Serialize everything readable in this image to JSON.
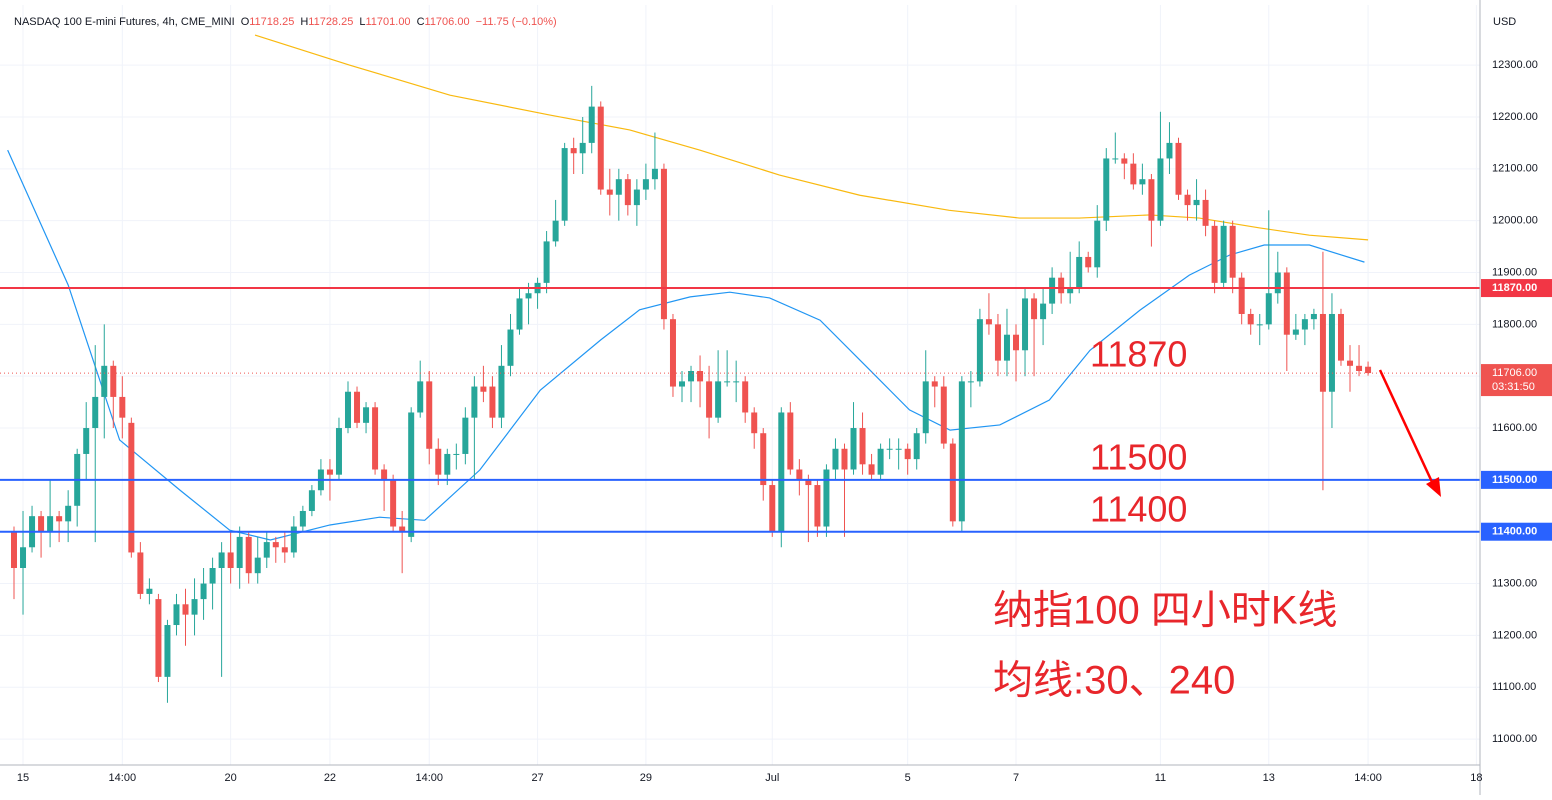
{
  "chart_data": {
    "type": "candlestick",
    "header": {
      "title": "NASDAQ 100 E-mini Futures, 4h, CME_MINI",
      "fields": [
        {
          "key": "O",
          "value": "11718.25"
        },
        {
          "key": "H",
          "value": "11728.25"
        },
        {
          "key": "L",
          "value": "11701.00"
        },
        {
          "key": "C",
          "value": "11706.00"
        }
      ],
      "change": "−11.75 (−0.10%)"
    },
    "currency": "USD",
    "up_color": "#26a69a",
    "down_color": "#ef5350",
    "ylim": [
      10950,
      12416
    ],
    "yticks": [
      {
        "value": 11000,
        "label": "11000.00"
      },
      {
        "value": 11100,
        "label": "11100.00"
      },
      {
        "value": 11200,
        "label": "11200.00"
      },
      {
        "value": 11300,
        "label": "11300.00"
      },
      {
        "value": 11400,
        "label": "11400.00"
      },
      {
        "value": 11500,
        "label": "11500.00"
      },
      {
        "value": 11600,
        "label": "11600.00"
      },
      {
        "value": 11700,
        "label": "11700.00"
      },
      {
        "value": 11800,
        "label": "11800.00"
      },
      {
        "value": 11900,
        "label": "11900.00"
      },
      {
        "value": 12000,
        "label": "12000.00"
      },
      {
        "value": 12100,
        "label": "12100.00"
      },
      {
        "value": 12200,
        "label": "12200.00"
      },
      {
        "value": 12300,
        "label": "12300.00"
      }
    ],
    "xlim": [
      -1.55,
      162.4
    ],
    "xticks": [
      {
        "value": 1,
        "label": "15"
      },
      {
        "value": 12,
        "label": "14:00"
      },
      {
        "value": 24,
        "label": "20"
      },
      {
        "value": 35,
        "label": "22"
      },
      {
        "value": 46,
        "label": "14:00"
      },
      {
        "value": 58,
        "label": "27"
      },
      {
        "value": 70,
        "label": "29"
      },
      {
        "value": 84,
        "label": "Jul"
      },
      {
        "value": 99,
        "label": "5"
      },
      {
        "value": 111,
        "label": "7"
      },
      {
        "value": 127,
        "label": "11"
      },
      {
        "value": 139,
        "label": "13"
      },
      {
        "value": 150,
        "label": "14:00"
      },
      {
        "value": 162,
        "label": "18"
      }
    ],
    "grid": true,
    "open": [
      11400,
      11330,
      11370,
      11430,
      11400,
      11430,
      11420,
      11450,
      11550,
      11600,
      11660,
      11720,
      11660,
      11610,
      11360,
      11280,
      11270,
      11120,
      11220,
      11260,
      11240,
      11270,
      11300,
      11330,
      11360,
      11330,
      11390,
      11320,
      11350,
      11380,
      11370,
      11360,
      11410,
      11440,
      11480,
      11520,
      11510,
      11600,
      11670,
      11610,
      11640,
      11520,
      11500,
      11410,
      11390,
      11630,
      11690,
      11560,
      11510,
      11550,
      11550,
      11620,
      11680,
      11680,
      11620,
      11720,
      11790,
      11850,
      11860,
      11880,
      11960,
      12000,
      12140,
      12130,
      12150,
      12220,
      12060,
      12050,
      12080,
      12030,
      12060,
      12080,
      12100,
      11810,
      11680,
      11690,
      11710,
      11690,
      11620,
      11690,
      11690,
      11690,
      11630,
      11590,
      11490,
      11400,
      11630,
      11520,
      11500,
      11490,
      11410,
      11520,
      11560,
      11520,
      11600,
      11530,
      11510,
      11560,
      11560,
      11560,
      11540,
      11590,
      11690,
      11680,
      11570,
      11420,
      11690,
      11690,
      11810,
      11800,
      11730,
      11780,
      11750,
      11850,
      11810,
      11840,
      11890,
      11860,
      11870,
      11930,
      11910,
      12000,
      12120,
      12120,
      12110,
      12070,
      12080,
      12000,
      12120,
      12150,
      12050,
      12030,
      12040,
      11990,
      11880,
      11990,
      11890,
      11820,
      11800,
      11800,
      11860,
      11900,
      11780,
      11790,
      11810,
      11820,
      11670,
      11820,
      11730,
      11720,
      11718.25
    ],
    "high": [
      11410,
      11440,
      11450,
      11440,
      11500,
      11440,
      11480,
      11560,
      11650,
      11760,
      11800,
      11730,
      11700,
      11620,
      11380,
      11310,
      11280,
      11230,
      11280,
      11290,
      11310,
      11330,
      11350,
      11380,
      11400,
      11410,
      11400,
      11390,
      11400,
      11390,
      11400,
      11430,
      11450,
      11490,
      11540,
      11540,
      11620,
      11690,
      11680,
      11650,
      11650,
      11530,
      11510,
      11440,
      11640,
      11730,
      11710,
      11580,
      11560,
      11570,
      11640,
      11700,
      11720,
      11700,
      11760,
      11820,
      11870,
      11880,
      11890,
      11980,
      12040,
      12150,
      12160,
      12200,
      12260,
      12230,
      12100,
      12100,
      12090,
      12080,
      12110,
      12170,
      12110,
      11820,
      11710,
      11720,
      11740,
      11720,
      11750,
      11750,
      11730,
      11700,
      11640,
      11600,
      11500,
      11640,
      11650,
      11540,
      11510,
      11500,
      11530,
      11580,
      11570,
      11650,
      11630,
      11550,
      11570,
      11580,
      11580,
      11570,
      11600,
      11750,
      11700,
      11700,
      11580,
      11700,
      11710,
      11830,
      11860,
      11820,
      11830,
      11800,
      11870,
      11860,
      11870,
      11910,
      11900,
      11940,
      11960,
      11940,
      12030,
      12140,
      12170,
      12130,
      12130,
      12110,
      12090,
      12210,
      12190,
      12160,
      12060,
      12080,
      12060,
      12000,
      12000,
      12000,
      11900,
      11830,
      11820,
      12020,
      11940,
      11910,
      11820,
      11820,
      11830,
      11940,
      11860,
      11830,
      11760,
      11760,
      11728.25
    ],
    "low": [
      11270,
      11240,
      11360,
      11350,
      11370,
      11380,
      11380,
      11410,
      11500,
      11380,
      11580,
      11600,
      11580,
      11350,
      11270,
      11260,
      11110,
      11070,
      11200,
      11180,
      11200,
      11230,
      11250,
      11120,
      11300,
      11290,
      11300,
      11300,
      11330,
      11340,
      11340,
      11350,
      11400,
      11430,
      11470,
      11460,
      11500,
      11590,
      11600,
      11590,
      11510,
      11440,
      11400,
      11320,
      11380,
      11620,
      11530,
      11490,
      11490,
      11520,
      11530,
      11500,
      11650,
      11600,
      11600,
      11700,
      11780,
      11800,
      11830,
      11860,
      11950,
      11990,
      12090,
      12090,
      12130,
      12050,
      12010,
      12000,
      12010,
      11990,
      12040,
      12060,
      11790,
      11660,
      11650,
      11650,
      11640,
      11580,
      11610,
      11680,
      11650,
      11610,
      11560,
      11460,
      11390,
      11370,
      11510,
      11470,
      11380,
      11390,
      11390,
      11500,
      11390,
      11510,
      11510,
      11500,
      11500,
      11540,
      11520,
      11510,
      11520,
      11570,
      11640,
      11560,
      11410,
      11400,
      11640,
      11680,
      11780,
      11700,
      11700,
      11690,
      11700,
      11700,
      11760,
      11820,
      11840,
      11840,
      11860,
      11900,
      11890,
      11980,
      12110,
      12080,
      12060,
      12050,
      11950,
      11990,
      12090,
      12040,
      12000,
      12000,
      11970,
      11860,
      11870,
      11860,
      11800,
      11780,
      11760,
      11790,
      11840,
      11710,
      11770,
      11760,
      11790,
      11480,
      11600,
      11720,
      11670,
      11700,
      11701
    ],
    "close": [
      11330,
      11370,
      11430,
      11400,
      11430,
      11420,
      11450,
      11550,
      11600,
      11660,
      11720,
      11660,
      11620,
      11360,
      11280,
      11290,
      11120,
      11220,
      11260,
      11240,
      11270,
      11300,
      11330,
      11360,
      11330,
      11390,
      11320,
      11350,
      11380,
      11370,
      11360,
      11410,
      11440,
      11480,
      11520,
      11510,
      11600,
      11670,
      11610,
      11640,
      11520,
      11500,
      11410,
      11400,
      11630,
      11690,
      11560,
      11510,
      11550,
      11550,
      11620,
      11680,
      11670,
      11620,
      11720,
      11790,
      11850,
      11860,
      11880,
      11960,
      12000,
      12140,
      12130,
      12150,
      12220,
      12060,
      12050,
      12080,
      12030,
      12060,
      12080,
      12100,
      11810,
      11680,
      11690,
      11710,
      11690,
      11620,
      11690,
      11690,
      11690,
      11630,
      11590,
      11490,
      11400,
      11630,
      11520,
      11500,
      11490,
      11410,
      11520,
      11560,
      11520,
      11600,
      11530,
      11510,
      11560,
      11560,
      11560,
      11540,
      11590,
      11690,
      11680,
      11570,
      11420,
      11690,
      11690,
      11810,
      11800,
      11730,
      11780,
      11750,
      11850,
      11810,
      11840,
      11890,
      11860,
      11870,
      11930,
      11910,
      12000,
      12120,
      12120,
      12110,
      12070,
      12080,
      12000,
      12120,
      12150,
      12050,
      12030,
      12040,
      11990,
      11880,
      11990,
      11890,
      11820,
      11800,
      11800,
      11860,
      11900,
      11780,
      11790,
      11810,
      11820,
      11670,
      11820,
      11730,
      11720,
      11710,
      11706
    ],
    "moving_averages": [
      {
        "color": "#2196f3",
        "x": [
          -0.7,
          6,
          11.7,
          18.4,
          23.9,
          28.4,
          35,
          40.5,
          45.5,
          51.6,
          58.3,
          65,
          69.3,
          74.9,
          79.3,
          83.7,
          89.3,
          94.8,
          99.2,
          103.7,
          109.2,
          114.7,
          119.2,
          124.7,
          130.2,
          134.7,
          138.5,
          143.5,
          149.6
        ],
        "values": [
          12136,
          11876,
          11577,
          11480,
          11403,
          11384,
          11413,
          11428,
          11422,
          11519,
          11673,
          11770,
          11828,
          11853,
          11862,
          11851,
          11808,
          11712,
          11635,
          11596,
          11606,
          11654,
          11750,
          11827,
          11895,
          11934,
          11953,
          11953,
          11920
        ]
      },
      {
        "color": "#f9b90f",
        "x": [
          26.7,
          37.2,
          48.3,
          59.3,
          68.2,
          76,
          84.8,
          93.7,
          103.6,
          111.4,
          118,
          125.8,
          131.3,
          138,
          143.5,
          150
        ],
        "values": [
          12358,
          12300,
          12242,
          12204,
          12175,
          12136,
          12088,
          12049,
          12020,
          12005,
          12005,
          12011,
          12005,
          11986,
          11972,
          11963
        ]
      }
    ],
    "price_lines": [
      {
        "value": 11870,
        "label": "11870.00",
        "color": "#f23645"
      },
      {
        "value": 11500,
        "label": "11500.00",
        "color": "#2962ff"
      },
      {
        "value": 11400,
        "label": "11400.00",
        "color": "#2962ff"
      }
    ],
    "last_price": {
      "value": 11706,
      "label": "11706.00",
      "countdown": "03:31:50",
      "color": "#ef5350"
    },
    "annotations": [
      "11870",
      "11500",
      "11400",
      "纳指100 四小时K线",
      "均线:30、240"
    ]
  }
}
